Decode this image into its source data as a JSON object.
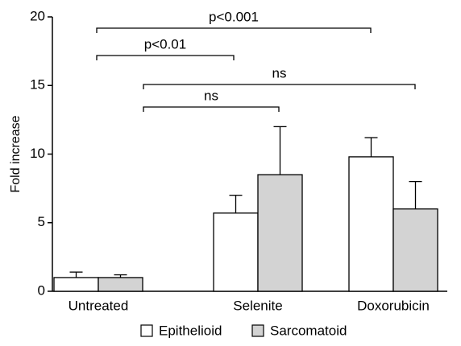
{
  "chart_data": {
    "type": "bar",
    "ylabel": "Fold increase",
    "categories": [
      "Untreated",
      "Selenite",
      "Doxorubicin"
    ],
    "series": [
      {
        "name": "Epithelioid",
        "color": "#ffffff",
        "values": [
          1.0,
          5.7,
          9.8
        ],
        "errors": [
          0.4,
          1.3,
          1.4
        ]
      },
      {
        "name": "Sarcomatoid",
        "color": "#d3d3d3",
        "values": [
          1.0,
          8.5,
          6.0
        ],
        "errors": [
          0.2,
          3.5,
          2.0
        ]
      }
    ],
    "ylim": [
      0,
      20
    ],
    "yticks": [
      0,
      5,
      10,
      15,
      20
    ],
    "annotations": [
      "p<0.001",
      "p<0.01",
      "ns",
      "ns"
    ],
    "legend": "bottom"
  }
}
